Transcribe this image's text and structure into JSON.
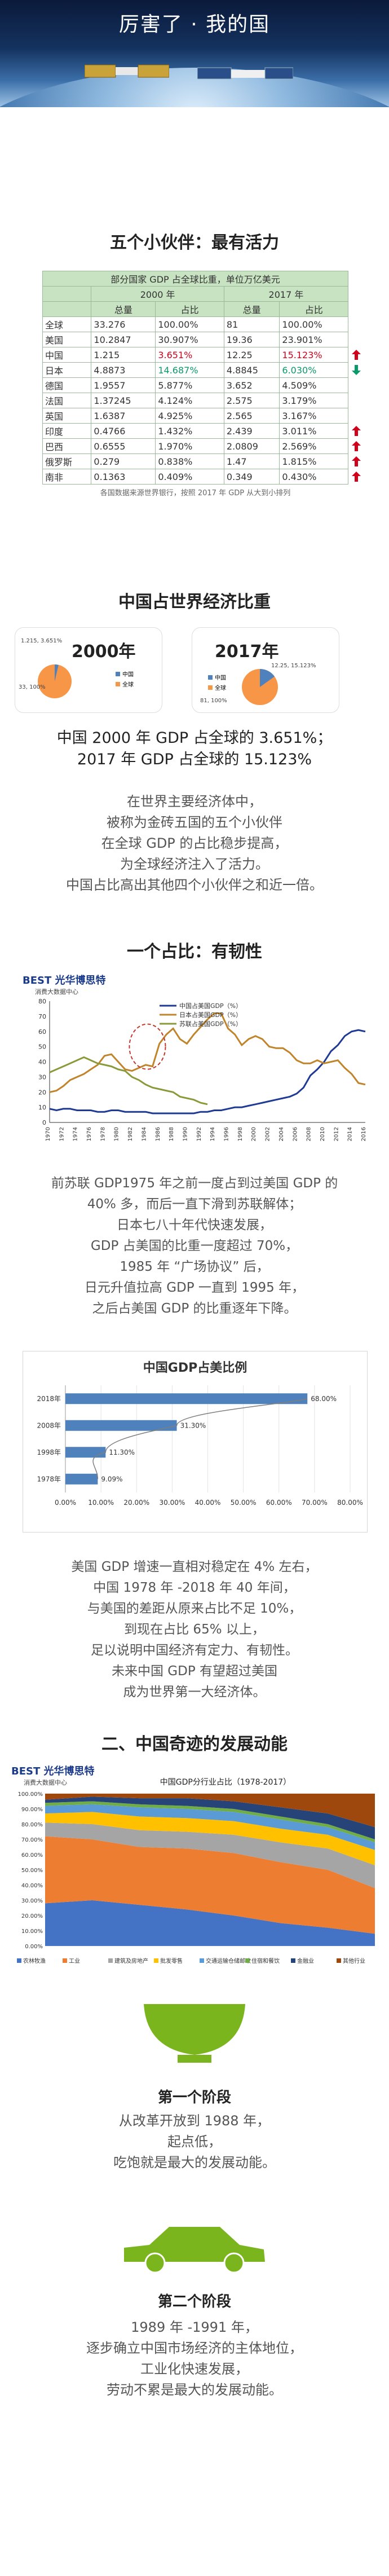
{
  "banner": {
    "title": "厉害了 · 我的国"
  },
  "section1": {
    "heading": "五个小伙伴：最有活力",
    "table": {
      "caption": "部分国家 GDP 占全球比重，单位万亿美元",
      "years": [
        "2000 年",
        "2017 年"
      ],
      "cols": [
        "总量",
        "占比",
        "总量",
        "占比"
      ],
      "rows": [
        {
          "name": "全球",
          "a": "33.276",
          "b": "100.00%",
          "c": "81",
          "d": "100.00%",
          "arrow": ""
        },
        {
          "name": "美国",
          "a": "10.2847",
          "b": "30.907%",
          "c": "19.36",
          "d": "23.901%",
          "arrow": ""
        },
        {
          "name": "中国",
          "a": "1.215",
          "b": "3.651%",
          "c": "12.25",
          "d": "15.123%",
          "arrow": "up"
        },
        {
          "name": "日本",
          "a": "4.8873",
          "b": "14.687%",
          "c": "4.8845",
          "d": "6.030%",
          "arrow": "down"
        },
        {
          "name": "德国",
          "a": "1.9557",
          "b": "5.877%",
          "c": "3.652",
          "d": "4.509%",
          "arrow": ""
        },
        {
          "name": "法国",
          "a": "1.37245",
          "b": "4.124%",
          "c": "2.575",
          "d": "3.179%",
          "arrow": ""
        },
        {
          "name": "英国",
          "a": "1.6387",
          "b": "4.925%",
          "c": "2.565",
          "d": "3.167%",
          "arrow": ""
        },
        {
          "name": "印度",
          "a": "0.4766",
          "b": "1.432%",
          "c": "2.439",
          "d": "3.011%",
          "arrow": "up"
        },
        {
          "name": "巴西",
          "a": "0.6555",
          "b": "1.970%",
          "c": "2.0809",
          "d": "2.569%",
          "arrow": "up"
        },
        {
          "name": "俄罗斯",
          "a": "0.279",
          "b": "0.838%",
          "c": "1.47",
          "d": "1.815%",
          "arrow": "up"
        },
        {
          "name": "南非",
          "a": "0.1363",
          "b": "0.409%",
          "c": "0.349",
          "d": "0.430%",
          "arrow": "up"
        }
      ],
      "footnote": "各国数据来源世界银行，按照 2017 年 GDP 从大到小排列"
    },
    "arrow_up_color": "#d0021b",
    "arrow_down_color": "#0a9a6a"
  },
  "section2": {
    "heading": "中国占世界经济比重",
    "pie2000": {
      "year": "2000年",
      "legend": [
        "中国",
        "全球"
      ],
      "china_label": "1.215, 3.651%",
      "world_label": "33, 100%"
    },
    "pie2017": {
      "year": "2017年",
      "legend": [
        "中国",
        "全球"
      ],
      "china_label": "12.25, 15.123%",
      "world_label": "81, 100%"
    },
    "colors": {
      "china": "#4f81bd",
      "world": "#f79646"
    },
    "summary": [
      "中国 2000 年 GDP 占全球的 3.651%；",
      "2017 年 GDP 占全球的 15.123%"
    ],
    "body": [
      "在世界主要经济体中，",
      "被称为金砖五国的五个小伙伴",
      "在全球 GDP 的占比稳步提高，",
      "为全球经济注入了活力。",
      "中国占比高出其他四个小伙伴之和近一倍。"
    ]
  },
  "section3": {
    "heading": "一个占比：有韧性",
    "brand": "BEST 光华博思特",
    "brand_sub": "消费大数据中心",
    "line_chart": {
      "legend": [
        "中国占美国GDP（%）",
        "日本占美国GDP（%）",
        "苏联占美国GDP（%）"
      ],
      "colors": [
        "#1f3a93",
        "#c0842a",
        "#8a9a3a"
      ],
      "xlabels": [
        "1970",
        "1972",
        "1974",
        "1976",
        "1978",
        "1980",
        "1982",
        "1984",
        "1986",
        "1988",
        "1990",
        "1992",
        "1994",
        "1996",
        "1998",
        "2000",
        "2002",
        "2004",
        "2006",
        "2008",
        "2010",
        "2012",
        "2014",
        "2016"
      ],
      "yticks": [
        0,
        10,
        20,
        30,
        40,
        50,
        60,
        70,
        80
      ]
    },
    "body": [
      "前苏联 GDP1975 年之前一度占到过美国 GDP 的",
      "40% 多，而后一直下滑到苏联解体；",
      "日本七八十年代快速发展，",
      "GDP 占美国的比重一度超过 70%，",
      "1985 年 “广场协议” 后，",
      "日元升值拉高 GDP 一直到 1995 年，",
      "之后占美国 GDP 的比重逐年下降。"
    ]
  },
  "chart_data": {
    "type": "bar",
    "title": "中国GDP占美比例",
    "categories": [
      "2018年",
      "2008年",
      "1998年",
      "1978年"
    ],
    "values": [
      68.0,
      31.3,
      11.3,
      9.09
    ],
    "value_labels": [
      "68.00%",
      "31.30%",
      "11.30%",
      "9.09%"
    ],
    "xticks": [
      "0.00%",
      "10.00%",
      "20.00%",
      "30.00%",
      "40.00%",
      "50.00%",
      "60.00%",
      "70.00%",
      "80.00%"
    ],
    "xlim": [
      0,
      80
    ],
    "bar_color": "#4f81bd"
  },
  "section4": {
    "body": [
      "美国 GDP 增速一直相对稳定在 4% 左右，",
      "中国 1978 年 -2018 年 40 年间，",
      "与美国的差距从原来占比不足 10%，",
      "到现在占比 65% 以上，",
      "足以说明中国经济有定力、有韧性。",
      "未来中国 GDP 有望超过美国",
      "成为世界第一大经济体。"
    ]
  },
  "section5": {
    "heading": "二、中国奇迹的发展动能",
    "brand": "BEST 光华博思特",
    "brand_sub": "消费大数据中心",
    "area_title": "中国GDP分行业占比（1978-2017）",
    "area_legend": [
      "农林牧渔",
      "工业",
      "建筑及房地产",
      "批发零售",
      "交通运输仓储邮政",
      "住宿和餐饮",
      "金融业",
      "其他行业"
    ],
    "area_colors": [
      "#4472c4",
      "#ed7d31",
      "#a5a5a5",
      "#ffc000",
      "#5b9bd5",
      "#70ad47",
      "#264478",
      "#9e480e"
    ],
    "area_yticks": [
      "0.00%",
      "10.00%",
      "20.00%",
      "30.00%",
      "40.00%",
      "50.00%",
      "60.00%",
      "70.00%",
      "80.00%",
      "90.00%",
      "100.00%"
    ],
    "stage1": {
      "title": "第一个阶段",
      "lines": [
        "从改革开放到 1988 年，",
        "起点低，",
        "吃饱就是最大的发展动能。"
      ]
    },
    "stage2": {
      "title": "第二个阶段",
      "lines": [
        "1989 年 -1991 年，",
        "逐步确立中国市场经济的主体地位，",
        "工业化快速发展，",
        "劳动不累是最大的发展动能。"
      ]
    },
    "icon_color": "#7ab51d"
  }
}
